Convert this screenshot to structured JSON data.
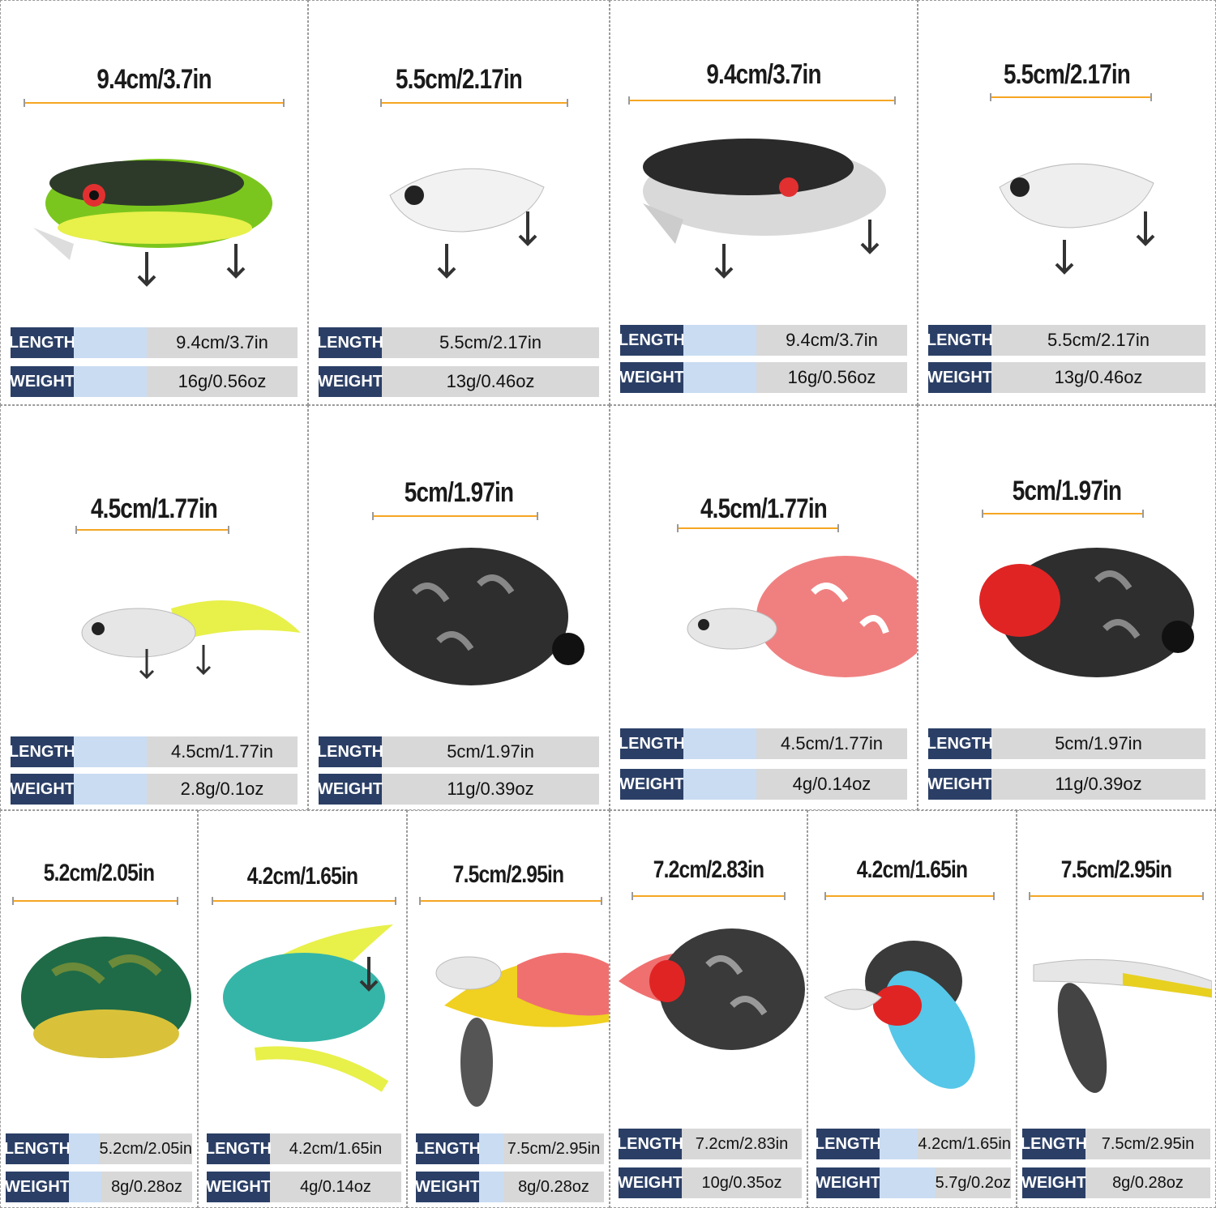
{
  "colors": {
    "header": "#2b3f66",
    "accent": "#c9dcf2",
    "row": "#d8d8d8",
    "dimension": "#f5a623"
  },
  "lures": [
    {
      "dimension": "9.4cm/3.7in",
      "length_key": "LENGTH",
      "length": "9.4cm/3.7in",
      "weight_key": "WEIGHT",
      "weight": "16g/0.56oz",
      "icon": "crankbait-lure-green-icon"
    },
    {
      "dimension": "5.5cm/2.17in",
      "length_key": "LENGTH",
      "length": "5.5cm/2.17in",
      "weight_key": "WEIGHT",
      "weight": "13g/0.46oz",
      "icon": "vib-lure-white-icon"
    },
    {
      "dimension": "9.4cm/3.7in",
      "length_key": "LENGTH",
      "length": "9.4cm/3.7in",
      "weight_key": "WEIGHT",
      "weight": "16g/0.56oz",
      "icon": "crankbait-lure-black-icon"
    },
    {
      "dimension": "5.5cm/2.17in",
      "length_key": "LENGTH",
      "length": "5.5cm/2.17in",
      "weight_key": "WEIGHT",
      "weight": "13g/0.46oz",
      "icon": "vib-lure-silver-icon"
    },
    {
      "dimension": "4.5cm/1.77in",
      "length_key": "LENGTH",
      "length": "4.5cm/1.77in",
      "weight_key": "WEIGHT",
      "weight": "2.8g/0.1oz",
      "icon": "minnow-lure-yellow-icon"
    },
    {
      "dimension": "5cm/1.97in",
      "length_key": "LENGTH",
      "length": "5cm/1.97in",
      "weight_key": "WEIGHT",
      "weight": "11g/0.39oz",
      "icon": "frog-lure-black-icon"
    },
    {
      "dimension": "4.5cm/1.77in",
      "length_key": "LENGTH",
      "length": "4.5cm/1.77in",
      "weight_key": "WEIGHT",
      "weight": "4g/0.14oz",
      "icon": "popper-lure-red-icon"
    },
    {
      "dimension": "5cm/1.97in",
      "length_key": "LENGTH",
      "length": "5cm/1.97in",
      "weight_key": "WEIGHT",
      "weight": "11g/0.39oz",
      "icon": "frog-lure-red-head-icon"
    },
    {
      "dimension": "5.2cm/2.05in",
      "length_key": "LENGTH",
      "length": "5.2cm/2.05in",
      "weight_key": "WEIGHT",
      "weight": "8g/0.28oz",
      "icon": "frog-lure-green-icon"
    },
    {
      "dimension": "4.2cm/1.65in",
      "length_key": "LENGTH",
      "length": "4.2cm/1.65in",
      "weight_key": "WEIGHT",
      "weight": "4g/0.14oz",
      "icon": "spinner-lure-yellow-icon"
    },
    {
      "dimension": "7.5cm/2.95in",
      "length_key": "LENGTH",
      "length": "7.5cm/2.95in",
      "weight_key": "WEIGHT",
      "weight": "8g/0.28oz",
      "icon": "popper-lure-red-yellow-icon"
    },
    {
      "dimension": "7.2cm/2.83in",
      "length_key": "LENGTH",
      "length": "7.2cm/2.83in",
      "weight_key": "WEIGHT",
      "weight": "10g/0.35oz",
      "icon": "frog-lure-gray-icon"
    },
    {
      "dimension": "4.2cm/1.65in",
      "length_key": "LENGTH",
      "length": "4.2cm/1.65in",
      "weight_key": "WEIGHT",
      "weight": "5.7g/0.2oz",
      "icon": "popper-lure-blue-icon"
    },
    {
      "dimension": "7.5cm/2.95in",
      "length_key": "LENGTH",
      "length": "7.5cm/2.95in",
      "weight_key": "WEIGHT",
      "weight": "8g/0.28oz",
      "icon": "spinner-lure-silver-icon"
    }
  ]
}
